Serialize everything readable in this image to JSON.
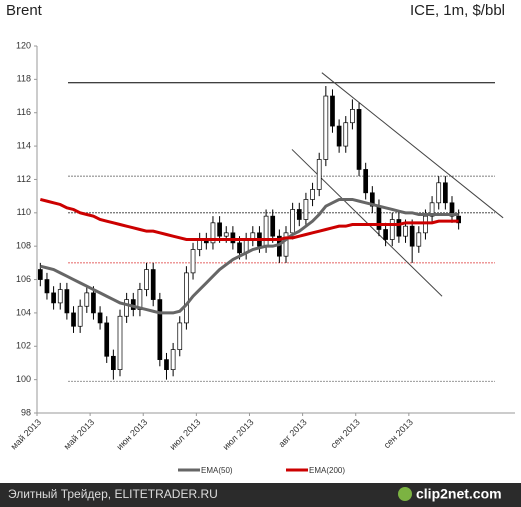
{
  "chart_data": {
    "type": "candlestick",
    "title": "Brent",
    "subtitle": "ICE, 1m, $/bbl",
    "categories": [
      "май 2013",
      null,
      null,
      null,
      null,
      null,
      null,
      null,
      "май 2013",
      null,
      null,
      null,
      null,
      null,
      null,
      null,
      "июн 2013",
      null,
      null,
      null,
      null,
      null,
      null,
      null,
      "июл 2013",
      null,
      null,
      null,
      null,
      null,
      null,
      null,
      "июл 2013",
      null,
      null,
      null,
      null,
      null,
      null,
      null,
      "авг 2013",
      null,
      null,
      null,
      null,
      null,
      null,
      null,
      "сен 2013",
      null,
      null,
      null,
      null,
      null,
      null,
      null,
      "сен 2013",
      null,
      null,
      null,
      null,
      null,
      null,
      null
    ],
    "open": [
      106.6,
      106.0,
      105.2,
      104.6,
      105.4,
      104.0,
      103.2,
      104.4,
      105.2,
      104.0,
      103.4,
      101.4,
      100.6,
      103.8,
      104.8,
      104.2,
      105.4,
      106.6,
      104.8,
      101.2,
      100.6,
      101.8,
      103.4,
      106.4,
      107.8,
      108.4,
      108.2,
      109.4,
      108.6,
      108.8,
      108.2,
      107.6,
      108.4,
      108.8,
      108.0,
      109.8,
      108.6,
      107.4,
      108.8,
      110.2,
      109.6,
      110.8,
      111.4,
      113.2,
      117.0,
      115.2,
      114.0,
      115.4,
      116.2,
      112.6,
      111.2,
      110.4,
      109.0,
      108.4,
      109.6,
      108.6,
      109.2,
      108.0,
      108.8,
      109.8,
      110.6,
      111.8,
      110.6,
      109.8
    ],
    "high": [
      107.0,
      106.4,
      105.6,
      105.8,
      105.8,
      104.4,
      104.8,
      105.6,
      105.6,
      104.4,
      103.8,
      101.8,
      104.2,
      105.2,
      105.2,
      105.8,
      107.0,
      107.0,
      105.2,
      101.6,
      102.2,
      103.8,
      106.8,
      108.2,
      108.8,
      108.8,
      109.8,
      109.8,
      109.2,
      109.2,
      108.6,
      108.8,
      109.2,
      109.2,
      110.2,
      110.2,
      109.0,
      109.2,
      110.6,
      110.6,
      111.2,
      111.8,
      113.6,
      117.6,
      117.4,
      115.6,
      115.8,
      116.8,
      116.6,
      113.0,
      111.6,
      110.8,
      109.4,
      110.0,
      110.0,
      109.6,
      109.6,
      109.2,
      110.2,
      111.0,
      112.2,
      112.2,
      111.0,
      110.2
    ],
    "low": [
      105.6,
      104.8,
      104.2,
      104.2,
      103.6,
      102.8,
      102.8,
      104.0,
      103.6,
      103.0,
      101.0,
      100.0,
      100.2,
      103.4,
      103.8,
      103.8,
      105.0,
      104.4,
      100.8,
      100.0,
      100.2,
      101.4,
      103.0,
      106.0,
      107.4,
      107.8,
      107.8,
      108.2,
      108.2,
      107.8,
      107.2,
      107.2,
      108.0,
      107.6,
      107.6,
      108.2,
      107.0,
      107.0,
      108.4,
      109.2,
      109.2,
      110.4,
      111.0,
      112.8,
      114.8,
      113.6,
      113.6,
      115.0,
      112.2,
      110.8,
      110.0,
      108.6,
      108.0,
      108.0,
      108.2,
      108.2,
      107.0,
      107.6,
      108.4,
      109.4,
      110.2,
      110.2,
      109.4,
      109.0
    ],
    "close": [
      106.0,
      105.2,
      104.6,
      105.4,
      104.0,
      103.2,
      104.4,
      105.2,
      104.0,
      103.4,
      101.4,
      100.6,
      103.8,
      104.8,
      104.2,
      105.4,
      106.6,
      104.8,
      101.2,
      100.6,
      101.8,
      103.4,
      106.4,
      107.8,
      108.4,
      108.2,
      109.4,
      108.6,
      108.8,
      108.2,
      107.6,
      108.4,
      108.8,
      108.0,
      109.8,
      108.6,
      107.4,
      108.8,
      110.2,
      109.6,
      110.8,
      111.4,
      113.2,
      117.0,
      115.2,
      114.0,
      115.4,
      116.2,
      112.6,
      111.2,
      110.4,
      109.0,
      108.4,
      109.6,
      108.6,
      109.2,
      108.0,
      108.8,
      109.8,
      110.6,
      111.8,
      110.6,
      109.8,
      109.4
    ],
    "series": [
      {
        "name": "EMA(50)",
        "color": "#666666",
        "values": [
          106.8,
          106.7,
          106.6,
          106.4,
          106.2,
          106.0,
          105.8,
          105.6,
          105.4,
          105.2,
          105.0,
          104.8,
          104.6,
          104.5,
          104.4,
          104.3,
          104.2,
          104.1,
          104.0,
          104.0,
          104.0,
          104.1,
          104.5,
          105.0,
          105.4,
          105.8,
          106.2,
          106.6,
          106.9,
          107.2,
          107.4,
          107.6,
          107.8,
          107.9,
          108.0,
          108.0,
          108.1,
          108.4,
          108.7,
          108.9,
          109.2,
          109.5,
          109.9,
          110.4,
          110.6,
          110.8,
          110.8,
          110.8,
          110.7,
          110.6,
          110.5,
          110.4,
          110.3,
          110.2,
          110.1,
          110.0,
          110.0,
          109.9,
          109.9,
          109.9,
          109.9,
          109.9,
          109.9,
          109.9
        ]
      },
      {
        "name": "EMA(200)",
        "color": "#cc0000",
        "values": [
          110.8,
          110.7,
          110.6,
          110.5,
          110.3,
          110.2,
          110.0,
          109.9,
          109.8,
          109.6,
          109.5,
          109.4,
          109.3,
          109.2,
          109.1,
          109.0,
          108.9,
          108.9,
          108.8,
          108.7,
          108.6,
          108.5,
          108.4,
          108.4,
          108.4,
          108.4,
          108.4,
          108.4,
          108.4,
          108.4,
          108.4,
          108.4,
          108.4,
          108.4,
          108.4,
          108.4,
          108.4,
          108.5,
          108.5,
          108.6,
          108.7,
          108.8,
          108.9,
          109.0,
          109.1,
          109.2,
          109.2,
          109.3,
          109.3,
          109.3,
          109.3,
          109.3,
          109.3,
          109.3,
          109.3,
          109.4,
          109.4,
          109.4,
          109.4,
          109.4,
          109.5,
          109.5,
          109.5,
          109.5
        ]
      }
    ],
    "levels": [
      {
        "value": 117.8,
        "color": "#000000"
      },
      {
        "value": 112.2,
        "color": "#555555"
      },
      {
        "value": 110,
        "color": "#333333"
      },
      {
        "value": 107,
        "color": "#dd3333"
      },
      {
        "value": 99.9,
        "color": "#888888"
      }
    ],
    "trendlines": [
      {
        "x": [
          42.4,
          69.7
        ],
        "y": [
          118.4,
          109.7
        ]
      },
      {
        "x": [
          37.9,
          60.5
        ],
        "y": [
          113.8,
          105.0
        ]
      }
    ],
    "ylim": [
      98,
      120
    ],
    "yticks": [
      98,
      100,
      102,
      104,
      106,
      108,
      110,
      112,
      114,
      116,
      118,
      120
    ]
  },
  "footer": {
    "source": "Элитный Трейдер, ELITETRADER.RU",
    "logo": "clip2net.com"
  }
}
